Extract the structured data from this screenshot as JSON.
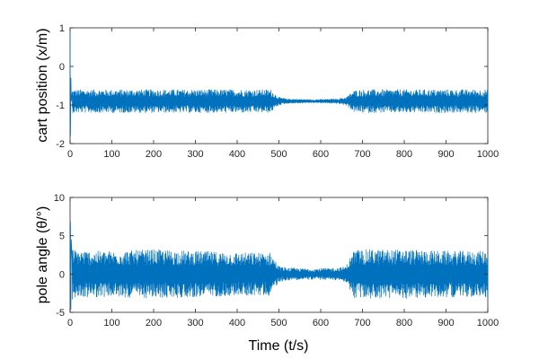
{
  "colors": {
    "background": "#ffffff",
    "series": "#0072bd",
    "axis": "#262626"
  },
  "xlabel": "Time (t/s)",
  "chart_data": [
    {
      "type": "line",
      "ylabel": "cart position (x/m)",
      "xlim": [
        0,
        1000
      ],
      "ylim": [
        -2,
        1
      ],
      "x_ticks": [
        0,
        100,
        200,
        300,
        400,
        500,
        600,
        700,
        800,
        900,
        1000
      ],
      "y_ticks": [
        -2,
        -1,
        0,
        1
      ],
      "grid": false,
      "series": [
        {
          "values_note": "none",
          "x": [
            0,
            1,
            2,
            3,
            5,
            10,
            50,
            100,
            200,
            300,
            400,
            480,
            500,
            520,
            580,
            640,
            660,
            680,
            700,
            800,
            900,
            1000
          ],
          "y_center": [
            1.0,
            -1.8,
            -0.3,
            -0.9,
            -0.9,
            -0.9,
            -0.9,
            -0.9,
            -0.9,
            -0.9,
            -0.9,
            -0.9,
            -0.9,
            -0.9,
            -0.9,
            -0.9,
            -0.9,
            -0.9,
            -0.9,
            -0.9,
            -0.9,
            -0.9
          ],
          "y_halfwidth": [
            0,
            0,
            0,
            0.3,
            0.3,
            0.3,
            0.3,
            0.3,
            0.3,
            0.3,
            0.3,
            0.3,
            0.1,
            0.06,
            0.04,
            0.06,
            0.1,
            0.28,
            0.3,
            0.3,
            0.3,
            0.3
          ]
        }
      ]
    },
    {
      "type": "line",
      "ylabel": "pole angle (θ/°)",
      "xlim": [
        0,
        1000
      ],
      "ylim": [
        -5,
        10
      ],
      "x_ticks": [
        0,
        100,
        200,
        300,
        400,
        500,
        600,
        700,
        800,
        900,
        1000
      ],
      "y_ticks": [
        -5,
        0,
        5,
        10
      ],
      "grid": false,
      "series": [
        {
          "x": [
            0,
            1,
            2,
            3,
            5,
            10,
            50,
            100,
            200,
            300,
            400,
            480,
            500,
            520,
            580,
            640,
            660,
            680,
            700,
            800,
            900,
            1000
          ],
          "y_center": [
            0,
            6.8,
            -4.6,
            4.5,
            0,
            0,
            0,
            0,
            0,
            0,
            0,
            0,
            0,
            0,
            0,
            0,
            0,
            0,
            0,
            0,
            0,
            0
          ],
          "y_halfwidth": [
            0,
            0,
            0,
            0,
            3.5,
            3.2,
            3.0,
            3.0,
            3.2,
            3.0,
            2.8,
            2.8,
            1.0,
            0.8,
            0.7,
            0.8,
            1.0,
            3.2,
            3.2,
            3.2,
            3.0,
            3.0
          ]
        }
      ]
    }
  ]
}
